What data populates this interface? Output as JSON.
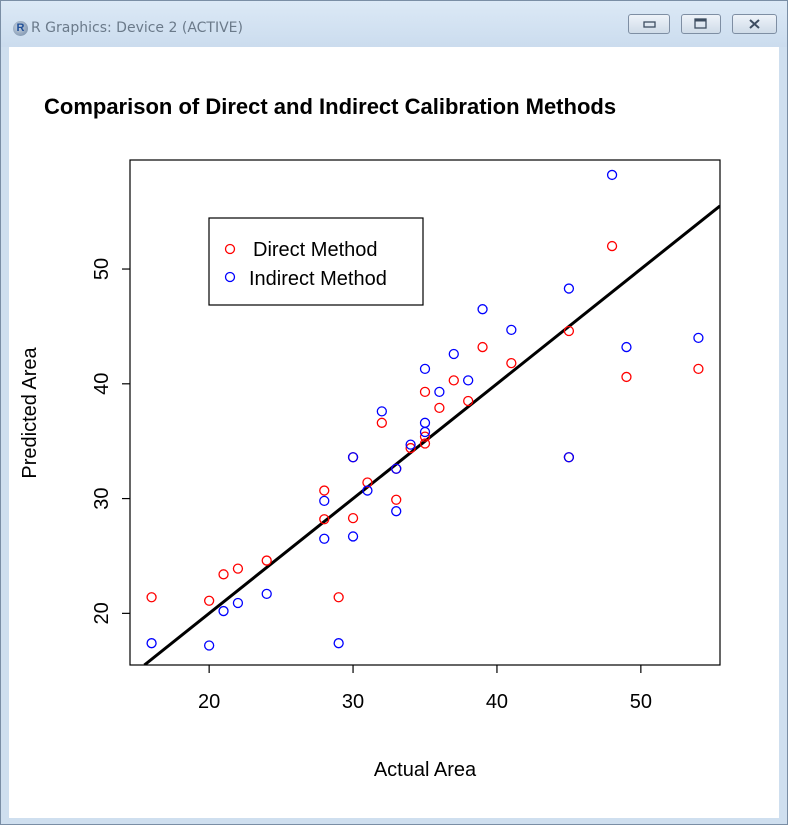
{
  "window": {
    "title": "R Graphics: Device 2 (ACTIVE)",
    "app_icon_letter": "R",
    "buttons": [
      "minimize",
      "maximize",
      "close"
    ]
  },
  "chart_data": {
    "type": "scatter",
    "title": "Comparison of Direct and Indirect Calibration Methods",
    "xlabel": "Actual Area",
    "ylabel": "Predicted Area",
    "xlim": [
      14.5,
      55.5
    ],
    "ylim": [
      15.5,
      59.5
    ],
    "x_ticks": [
      20,
      30,
      40,
      50
    ],
    "y_ticks": [
      20,
      30,
      40,
      50
    ],
    "legend": {
      "position": "top-left",
      "entries": [
        {
          "label": "Direct Method",
          "color": "#ff0000"
        },
        {
          "label": "Indirect Method",
          "color": "#0000ff"
        }
      ]
    },
    "fit_line": {
      "x": [
        15.5,
        55.5
      ],
      "y": [
        15.5,
        55.5
      ],
      "color": "#000000"
    },
    "series": [
      {
        "name": "Direct Method",
        "color": "#ff0000",
        "x": [
          16,
          20,
          21,
          22,
          24,
          28,
          28,
          29,
          30,
          30,
          31,
          32,
          33,
          33,
          34,
          35,
          35,
          35,
          36,
          37,
          38,
          39,
          41,
          45,
          45,
          48,
          49,
          54
        ],
        "y": [
          21.4,
          21.1,
          23.4,
          23.9,
          24.6,
          30.7,
          28.2,
          21.4,
          28.3,
          33.6,
          31.4,
          36.6,
          32.6,
          29.9,
          34.4,
          34.8,
          35.4,
          39.3,
          37.9,
          40.3,
          38.5,
          43.2,
          41.8,
          44.6,
          33.6,
          52.0,
          40.6,
          41.3
        ]
      },
      {
        "name": "Indirect Method",
        "color": "#0000ff",
        "x": [
          16,
          20,
          21,
          22,
          24,
          28,
          28,
          29,
          30,
          30,
          31,
          32,
          33,
          33,
          34,
          35,
          35,
          35,
          36,
          37,
          38,
          39,
          41,
          45,
          45,
          48,
          49,
          54
        ],
        "y": [
          17.4,
          17.2,
          20.2,
          20.9,
          21.7,
          29.8,
          26.5,
          17.4,
          26.7,
          33.6,
          30.7,
          37.6,
          32.6,
          28.9,
          34.7,
          36.6,
          35.8,
          41.3,
          39.3,
          42.6,
          40.3,
          46.5,
          44.7,
          48.3,
          33.6,
          58.2,
          43.2,
          44.0
        ]
      }
    ]
  }
}
